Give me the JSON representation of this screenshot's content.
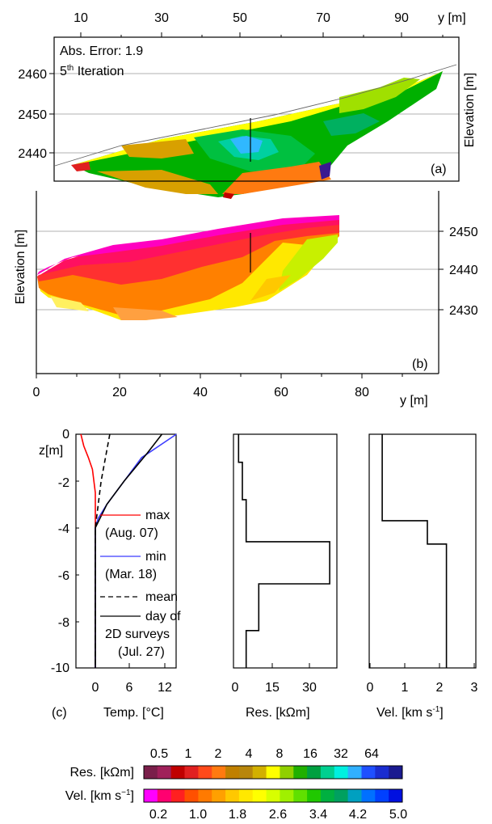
{
  "panel_a": {
    "x_axis_label": "y [m]",
    "x_ticks": [
      "10",
      "30",
      "50",
      "70",
      "90"
    ],
    "y_axis_label": "Elevation [m]",
    "y_ticks": [
      "2460",
      "2450",
      "2440"
    ],
    "error_text": "Abs. Error: 1.9",
    "iteration_prefix": "5",
    "iteration_sup": "th",
    "iteration_suffix": " Iteration",
    "panel_label": "(a)"
  },
  "panel_b": {
    "y_axis_label": "Elevation [m]",
    "y_ticks": [
      "2450",
      "2440",
      "2430"
    ],
    "x_ticks": [
      "0",
      "20",
      "40",
      "60",
      "80"
    ],
    "x_axis_label": "y [m]",
    "panel_label": "(b)"
  },
  "panel_c": {
    "panel_label": "(c)",
    "z_label": "z[m]",
    "z_ticks": [
      "0",
      "-2",
      "-4",
      "-6",
      "-8",
      "-10"
    ],
    "temp": {
      "x_ticks": [
        "0",
        "6",
        "12"
      ],
      "xlabel": "Temp. [°C]",
      "legend": [
        {
          "line1": "max",
          "line2": "(Aug. 07)",
          "color": "#ff0000",
          "style": "solid"
        },
        {
          "line1": "min",
          "line2": "(Mar. 18)",
          "color": "#3b3bff",
          "style": "solid"
        },
        {
          "line1": "mean",
          "line2": "",
          "color": "#000000",
          "style": "dashed"
        },
        {
          "line1": "day of",
          "line2": "2D surveys",
          "line3": "(Jul. 27)",
          "color": "#000000",
          "style": "solid"
        }
      ]
    },
    "res": {
      "x_ticks": [
        "0",
        "15",
        "30"
      ],
      "xlabel": "Res. [kΩm]"
    },
    "vel": {
      "x_ticks": [
        "0",
        "1",
        "2",
        "3"
      ],
      "xlabel_main": "Vel. [km s",
      "xlabel_sup": "-1",
      "xlabel_end": "]"
    }
  },
  "colorbars": {
    "res_label": "Res. [kΩm]",
    "res_ticks": [
      "0.5",
      "1",
      "2",
      "4",
      "8",
      "16",
      "32",
      "64"
    ],
    "res_colors": [
      "#7a1f4a",
      "#a0205a",
      "#c00000",
      "#e02020",
      "#ff4a1a",
      "#ff7a10",
      "#c08000",
      "#b8860b",
      "#d2b000",
      "#ffff00",
      "#90d000",
      "#20b000",
      "#00a040",
      "#00d090",
      "#00f0e0",
      "#30b0ff",
      "#1f50ff",
      "#1a2dd0",
      "#1a1a90"
    ],
    "vel_label": "Vel. [km s",
    "vel_label_sup": "−1",
    "vel_label_end": "]",
    "vel_ticks": [
      "0.2",
      "1.0",
      "1.8",
      "2.6",
      "3.4",
      "4.2",
      "5.0"
    ],
    "vel_colors": [
      "#ff00ff",
      "#ff0070",
      "#ff2020",
      "#ff5000",
      "#ff7a00",
      "#ffa000",
      "#ffc800",
      "#ffe800",
      "#ffff00",
      "#d8ff00",
      "#a0f000",
      "#60e000",
      "#20c800",
      "#00b040",
      "#00a060",
      "#00a0c0",
      "#0070ff",
      "#0040ff",
      "#0010e0"
    ]
  },
  "chart_data": [
    {
      "type": "heatmap",
      "title": "",
      "xlabel": "y [m]",
      "ylabel": "Elevation [m]",
      "x_ticks": [
        10,
        30,
        50,
        70,
        90
      ],
      "y_ticks": [
        2440,
        2450,
        2460
      ],
      "annotations": [
        "Abs. Error: 1.9",
        "5th Iteration",
        "(a)"
      ]
    },
    {
      "type": "heatmap",
      "title": "",
      "xlabel": "y [m]",
      "ylabel": "Elevation [m]",
      "x_ticks": [
        0,
        20,
        40,
        60,
        80
      ],
      "y_ticks": [
        2430,
        2440,
        2450
      ],
      "annotations": [
        "(b)"
      ]
    },
    {
      "type": "line",
      "xlabel": "Temp. [°C]",
      "ylabel": "z[m]",
      "xlim": [
        -3,
        15
      ],
      "ylim": [
        -10,
        0
      ],
      "series": [
        {
          "name": "max (Aug. 07)",
          "color": "#ff0000",
          "points": [
            [
              -2.5,
              0
            ],
            [
              -2,
              -0.5
            ],
            [
              -1.2,
              -1
            ],
            [
              -0.5,
              -1.5
            ],
            [
              0,
              -2.5
            ],
            [
              0,
              -10
            ]
          ]
        },
        {
          "name": "min (Mar. 18)",
          "color": "#3b3bff",
          "points": [
            [
              14,
              0
            ],
            [
              11,
              -0.5
            ],
            [
              8,
              -1
            ],
            [
              5,
              -2
            ],
            [
              2,
              -3
            ],
            [
              0.5,
              -3.6
            ],
            [
              0,
              -4
            ],
            [
              0,
              -10
            ]
          ]
        },
        {
          "name": "mean",
          "color": "#000000",
          "points": [
            [
              2.5,
              0
            ],
            [
              1,
              -2
            ],
            [
              0,
              -4
            ],
            [
              0,
              -10
            ]
          ]
        },
        {
          "name": "day of 2D surveys (Jul. 27)",
          "color": "#000000",
          "points": [
            [
              11.5,
              0
            ],
            [
              9,
              -0.8
            ],
            [
              5,
              -2
            ],
            [
              2,
              -3
            ],
            [
              0,
              -4
            ],
            [
              0,
              -10
            ]
          ]
        }
      ]
    },
    {
      "type": "line",
      "xlabel": "Res. [kΩm]",
      "xlim": [
        0,
        40
      ],
      "ylim": [
        -10,
        0
      ],
      "series": [
        {
          "name": "Res",
          "points": [
            [
              2,
              0
            ],
            [
              2,
              -1.2
            ],
            [
              3.5,
              -1.2
            ],
            [
              3.5,
              -2.8
            ],
            [
              5,
              -2.8
            ],
            [
              5,
              -4.6
            ],
            [
              38,
              -4.6
            ],
            [
              38,
              -6.4
            ],
            [
              10,
              -6.4
            ],
            [
              10,
              -8.4
            ],
            [
              5,
              -8.4
            ],
            [
              5,
              -10
            ]
          ]
        }
      ]
    },
    {
      "type": "line",
      "xlabel": "Vel. [km s-1]",
      "xlim": [
        0,
        3
      ],
      "ylim": [
        -10,
        0
      ],
      "series": [
        {
          "name": "Vel",
          "points": [
            [
              0.35,
              0
            ],
            [
              0.35,
              -3.7
            ],
            [
              1.65,
              -3.7
            ],
            [
              1.65,
              -4.7
            ],
            [
              2.2,
              -4.7
            ],
            [
              2.2,
              -10
            ]
          ]
        }
      ]
    }
  ]
}
